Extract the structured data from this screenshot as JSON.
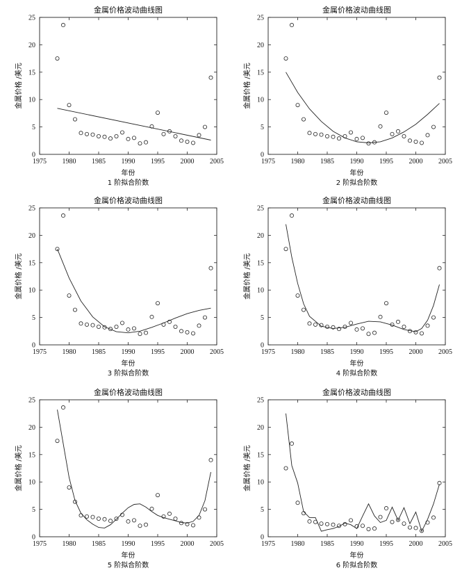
{
  "figure": {
    "panels": [
      {
        "title": "金属价格波动曲线图",
        "ylabel": "金属价格 /美元",
        "xlabel": "年份",
        "caption": "1 阶拟合阶数"
      },
      {
        "title": "金属价格波动曲线图",
        "ylabel": "金属价格 /美元",
        "xlabel": "年份",
        "caption": "2 阶拟合阶数"
      },
      {
        "title": "金属价格波动曲线图",
        "ylabel": "金属价格 /美元",
        "xlabel": "年份",
        "caption": "3 阶拟合阶数"
      },
      {
        "title": "金属价格波动曲线图",
        "ylabel": "金属价格 /美元",
        "xlabel": "年份",
        "caption": "4 阶拟合阶数"
      },
      {
        "title": "金属价格波动曲线图",
        "ylabel": "金属价格 /美元",
        "xlabel": "年份",
        "caption": "5 阶拟合阶数"
      },
      {
        "title": "金属价格波动曲线图",
        "ylabel": "金属价格 /美元",
        "xlabel": "年份",
        "caption": "6 阶拟合阶数"
      }
    ]
  },
  "chart_data": [
    {
      "type": "scatter",
      "title": "金属价格波动曲线图",
      "xlabel": "年份",
      "ylabel": "金属价格 /美元",
      "caption": "1 阶拟合阶数",
      "xlim": [
        1975,
        2005
      ],
      "ylim": [
        0,
        25
      ],
      "xticks": [
        1975,
        1980,
        1985,
        1990,
        1995,
        2000,
        2005
      ],
      "yticks": [
        0,
        5,
        10,
        15,
        20,
        25
      ],
      "series": [
        {
          "name": "data",
          "kind": "markers",
          "x": [
            1978,
            1979,
            1980,
            1981,
            1982,
            1983,
            1984,
            1985,
            1986,
            1987,
            1988,
            1989,
            1990,
            1991,
            1992,
            1993,
            1994,
            1995,
            1996,
            1997,
            1998,
            1999,
            2000,
            2001,
            2002,
            2003,
            2004
          ],
          "y": [
            17.5,
            23.6,
            9.0,
            6.4,
            3.9,
            3.7,
            3.6,
            3.3,
            3.2,
            2.9,
            3.3,
            4.0,
            2.8,
            3.0,
            2.0,
            2.2,
            5.1,
            7.6,
            3.7,
            4.2,
            3.3,
            2.5,
            2.3,
            2.1,
            3.5,
            5.0,
            14.0
          ]
        },
        {
          "name": "fit",
          "kind": "line",
          "x": [
            1978,
            2004
          ],
          "y": [
            8.4,
            2.6
          ]
        }
      ]
    },
    {
      "type": "scatter",
      "title": "金属价格波动曲线图",
      "xlabel": "年份",
      "ylabel": "金属价格 /美元",
      "caption": "2 阶拟合阶数",
      "xlim": [
        1975,
        2005
      ],
      "ylim": [
        0,
        25
      ],
      "xticks": [
        1975,
        1980,
        1985,
        1990,
        1995,
        2000,
        2005
      ],
      "yticks": [
        0,
        5,
        10,
        15,
        20,
        25
      ],
      "series": [
        {
          "name": "data",
          "kind": "markers",
          "x": [
            1978,
            1979,
            1980,
            1981,
            1982,
            1983,
            1984,
            1985,
            1986,
            1987,
            1988,
            1989,
            1990,
            1991,
            1992,
            1993,
            1994,
            1995,
            1996,
            1997,
            1998,
            1999,
            2000,
            2001,
            2002,
            2003,
            2004
          ],
          "y": [
            17.5,
            23.6,
            9.0,
            6.4,
            3.9,
            3.7,
            3.6,
            3.3,
            3.2,
            2.9,
            3.3,
            4.0,
            2.8,
            3.0,
            2.0,
            2.2,
            5.1,
            7.6,
            3.7,
            4.2,
            3.3,
            2.5,
            2.3,
            2.1,
            3.5,
            5.0,
            14.0
          ]
        },
        {
          "name": "fit",
          "kind": "line",
          "x": [
            1978,
            1980,
            1982,
            1984,
            1986,
            1988,
            1990,
            1992,
            1994,
            1996,
            1998,
            2000,
            2002,
            2004
          ],
          "y": [
            15.0,
            11.3,
            8.3,
            6.0,
            4.2,
            3.0,
            2.3,
            2.1,
            2.3,
            3.0,
            4.1,
            5.5,
            7.3,
            9.3
          ]
        }
      ]
    },
    {
      "type": "scatter",
      "title": "金属价格波动曲线图",
      "xlabel": "年份",
      "ylabel": "金属价格 /美元",
      "caption": "3 阶拟合阶数",
      "xlim": [
        1975,
        2005
      ],
      "ylim": [
        0,
        25
      ],
      "xticks": [
        1975,
        1980,
        1985,
        1990,
        1995,
        2000,
        2005
      ],
      "yticks": [
        0,
        5,
        10,
        15,
        20,
        25
      ],
      "series": [
        {
          "name": "data",
          "kind": "markers",
          "x": [
            1978,
            1979,
            1980,
            1981,
            1982,
            1983,
            1984,
            1985,
            1986,
            1987,
            1988,
            1989,
            1990,
            1991,
            1992,
            1993,
            1994,
            1995,
            1996,
            1997,
            1998,
            1999,
            2000,
            2001,
            2002,
            2003,
            2004
          ],
          "y": [
            17.5,
            23.6,
            9.0,
            6.4,
            3.9,
            3.7,
            3.6,
            3.3,
            3.2,
            2.9,
            3.3,
            4.0,
            2.8,
            3.0,
            2.0,
            2.2,
            5.1,
            7.6,
            3.7,
            4.2,
            3.3,
            2.5,
            2.3,
            2.1,
            3.5,
            5.0,
            14.0
          ]
        },
        {
          "name": "fit",
          "kind": "line",
          "x": [
            1978,
            1980,
            1982,
            1984,
            1986,
            1988,
            1990,
            1992,
            1994,
            1996,
            1998,
            2000,
            2002,
            2004
          ],
          "y": [
            17.5,
            12.2,
            8.0,
            5.1,
            3.3,
            2.4,
            2.2,
            2.5,
            3.2,
            4.0,
            4.9,
            5.7,
            6.3,
            6.7
          ]
        }
      ]
    },
    {
      "type": "scatter",
      "title": "金属价格波动曲线图",
      "xlabel": "年份",
      "ylabel": "金属价格 /美元",
      "caption": "4 阶拟合阶数",
      "xlim": [
        1975,
        2005
      ],
      "ylim": [
        0,
        25
      ],
      "xticks": [
        1975,
        1980,
        1985,
        1990,
        1995,
        2000,
        2005
      ],
      "yticks": [
        0,
        5,
        10,
        15,
        20,
        25
      ],
      "series": [
        {
          "name": "data",
          "kind": "markers",
          "x": [
            1978,
            1979,
            1980,
            1981,
            1982,
            1983,
            1984,
            1985,
            1986,
            1987,
            1988,
            1989,
            1990,
            1991,
            1992,
            1993,
            1994,
            1995,
            1996,
            1997,
            1998,
            1999,
            2000,
            2001,
            2002,
            2003,
            2004
          ],
          "y": [
            17.5,
            23.6,
            9.0,
            6.4,
            3.9,
            3.7,
            3.6,
            3.3,
            3.2,
            2.9,
            3.3,
            4.0,
            2.8,
            3.0,
            2.0,
            2.2,
            5.1,
            7.6,
            3.7,
            4.2,
            3.3,
            2.5,
            2.3,
            2.1,
            3.5,
            5.0,
            14.0
          ]
        },
        {
          "name": "fit",
          "kind": "line",
          "x": [
            1978,
            1979,
            1980,
            1981,
            1982,
            1984,
            1986,
            1988,
            1990,
            1992,
            1994,
            1996,
            1998,
            2000,
            2001,
            2002,
            2003,
            2004
          ],
          "y": [
            22.0,
            16.0,
            11.2,
            7.5,
            5.2,
            3.4,
            3.0,
            3.2,
            3.8,
            4.3,
            4.2,
            3.6,
            2.8,
            2.4,
            3.0,
            4.5,
            7.2,
            11.0
          ]
        }
      ]
    },
    {
      "type": "scatter",
      "title": "金属价格波动曲线图",
      "xlabel": "年份",
      "ylabel": "金属价格 /美元",
      "caption": "5 阶拟合阶数",
      "xlim": [
        1975,
        2005
      ],
      "ylim": [
        0,
        25
      ],
      "xticks": [
        1975,
        1980,
        1985,
        1990,
        1995,
        2000,
        2005
      ],
      "yticks": [
        0,
        5,
        10,
        15,
        20,
        25
      ],
      "series": [
        {
          "name": "data",
          "kind": "markers",
          "x": [
            1978,
            1979,
            1980,
            1981,
            1982,
            1983,
            1984,
            1985,
            1986,
            1987,
            1988,
            1989,
            1990,
            1991,
            1992,
            1993,
            1994,
            1995,
            1996,
            1997,
            1998,
            1999,
            2000,
            2001,
            2002,
            2003,
            2004
          ],
          "y": [
            17.5,
            23.6,
            9.0,
            6.4,
            3.9,
            3.7,
            3.6,
            3.3,
            3.2,
            2.9,
            3.3,
            4.0,
            2.8,
            3.0,
            2.0,
            2.2,
            5.1,
            7.6,
            3.7,
            4.2,
            3.3,
            2.5,
            2.3,
            2.1,
            3.5,
            5.0,
            14.0
          ]
        },
        {
          "name": "fit",
          "kind": "line",
          "x": [
            1978,
            1979,
            1980,
            1981,
            1982,
            1983,
            1984,
            1985,
            1986,
            1987,
            1988,
            1989,
            1990,
            1991,
            1992,
            1993,
            1994,
            1995,
            1996,
            1997,
            1998,
            1999,
            2000,
            2001,
            2002,
            2003,
            2004
          ],
          "y": [
            23.2,
            17.0,
            10.8,
            6.6,
            4.3,
            3.1,
            2.3,
            1.7,
            1.6,
            2.2,
            3.2,
            4.3,
            5.3,
            5.9,
            6.0,
            5.4,
            4.6,
            3.9,
            3.5,
            3.2,
            2.9,
            2.6,
            2.5,
            2.8,
            3.9,
            6.6,
            11.8
          ]
        }
      ]
    },
    {
      "type": "scatter",
      "title": "金属价格波动曲线图",
      "xlabel": "年份",
      "ylabel": "金属价格 /美元",
      "caption": "6 阶拟合阶数",
      "xlim": [
        1975,
        2005
      ],
      "ylim": [
        0,
        25
      ],
      "xticks": [
        1975,
        1980,
        1985,
        1990,
        1995,
        2000,
        2005
      ],
      "yticks": [
        0,
        5,
        10,
        15,
        20,
        25
      ],
      "series": [
        {
          "name": "data",
          "kind": "markers",
          "x": [
            1978,
            1979,
            1980,
            1981,
            1982,
            1983,
            1984,
            1985,
            1986,
            1987,
            1988,
            1989,
            1990,
            1991,
            1992,
            1993,
            1994,
            1995,
            1996,
            1997,
            1998,
            1999,
            2000,
            2001,
            2002,
            2003,
            2004
          ],
          "y": [
            12.5,
            17.0,
            6.2,
            4.3,
            2.8,
            2.7,
            2.4,
            2.3,
            2.2,
            2.0,
            2.3,
            3.0,
            1.9,
            2.0,
            1.4,
            1.5,
            3.6,
            5.2,
            2.7,
            3.1,
            2.4,
            1.7,
            1.6,
            1.1,
            2.6,
            3.5,
            9.8
          ]
        },
        {
          "name": "fit",
          "kind": "line",
          "x": [
            1978,
            1979,
            1980,
            1981,
            1982,
            1983,
            1984,
            1985,
            1986,
            1987,
            1988,
            1989,
            1990,
            1991,
            1992,
            1993,
            1994,
            1995,
            1996,
            1997,
            1998,
            1999,
            2000,
            2001,
            2002,
            2003,
            2004
          ],
          "y": [
            22.5,
            13.0,
            9.8,
            4.6,
            3.5,
            3.5,
            1.0,
            1.3,
            1.5,
            1.9,
            2.5,
            2.2,
            1.5,
            3.8,
            6.0,
            3.8,
            2.6,
            3.0,
            5.4,
            3.0,
            5.3,
            2.4,
            4.5,
            1.0,
            3.2,
            6.0,
            9.6
          ]
        }
      ]
    }
  ]
}
